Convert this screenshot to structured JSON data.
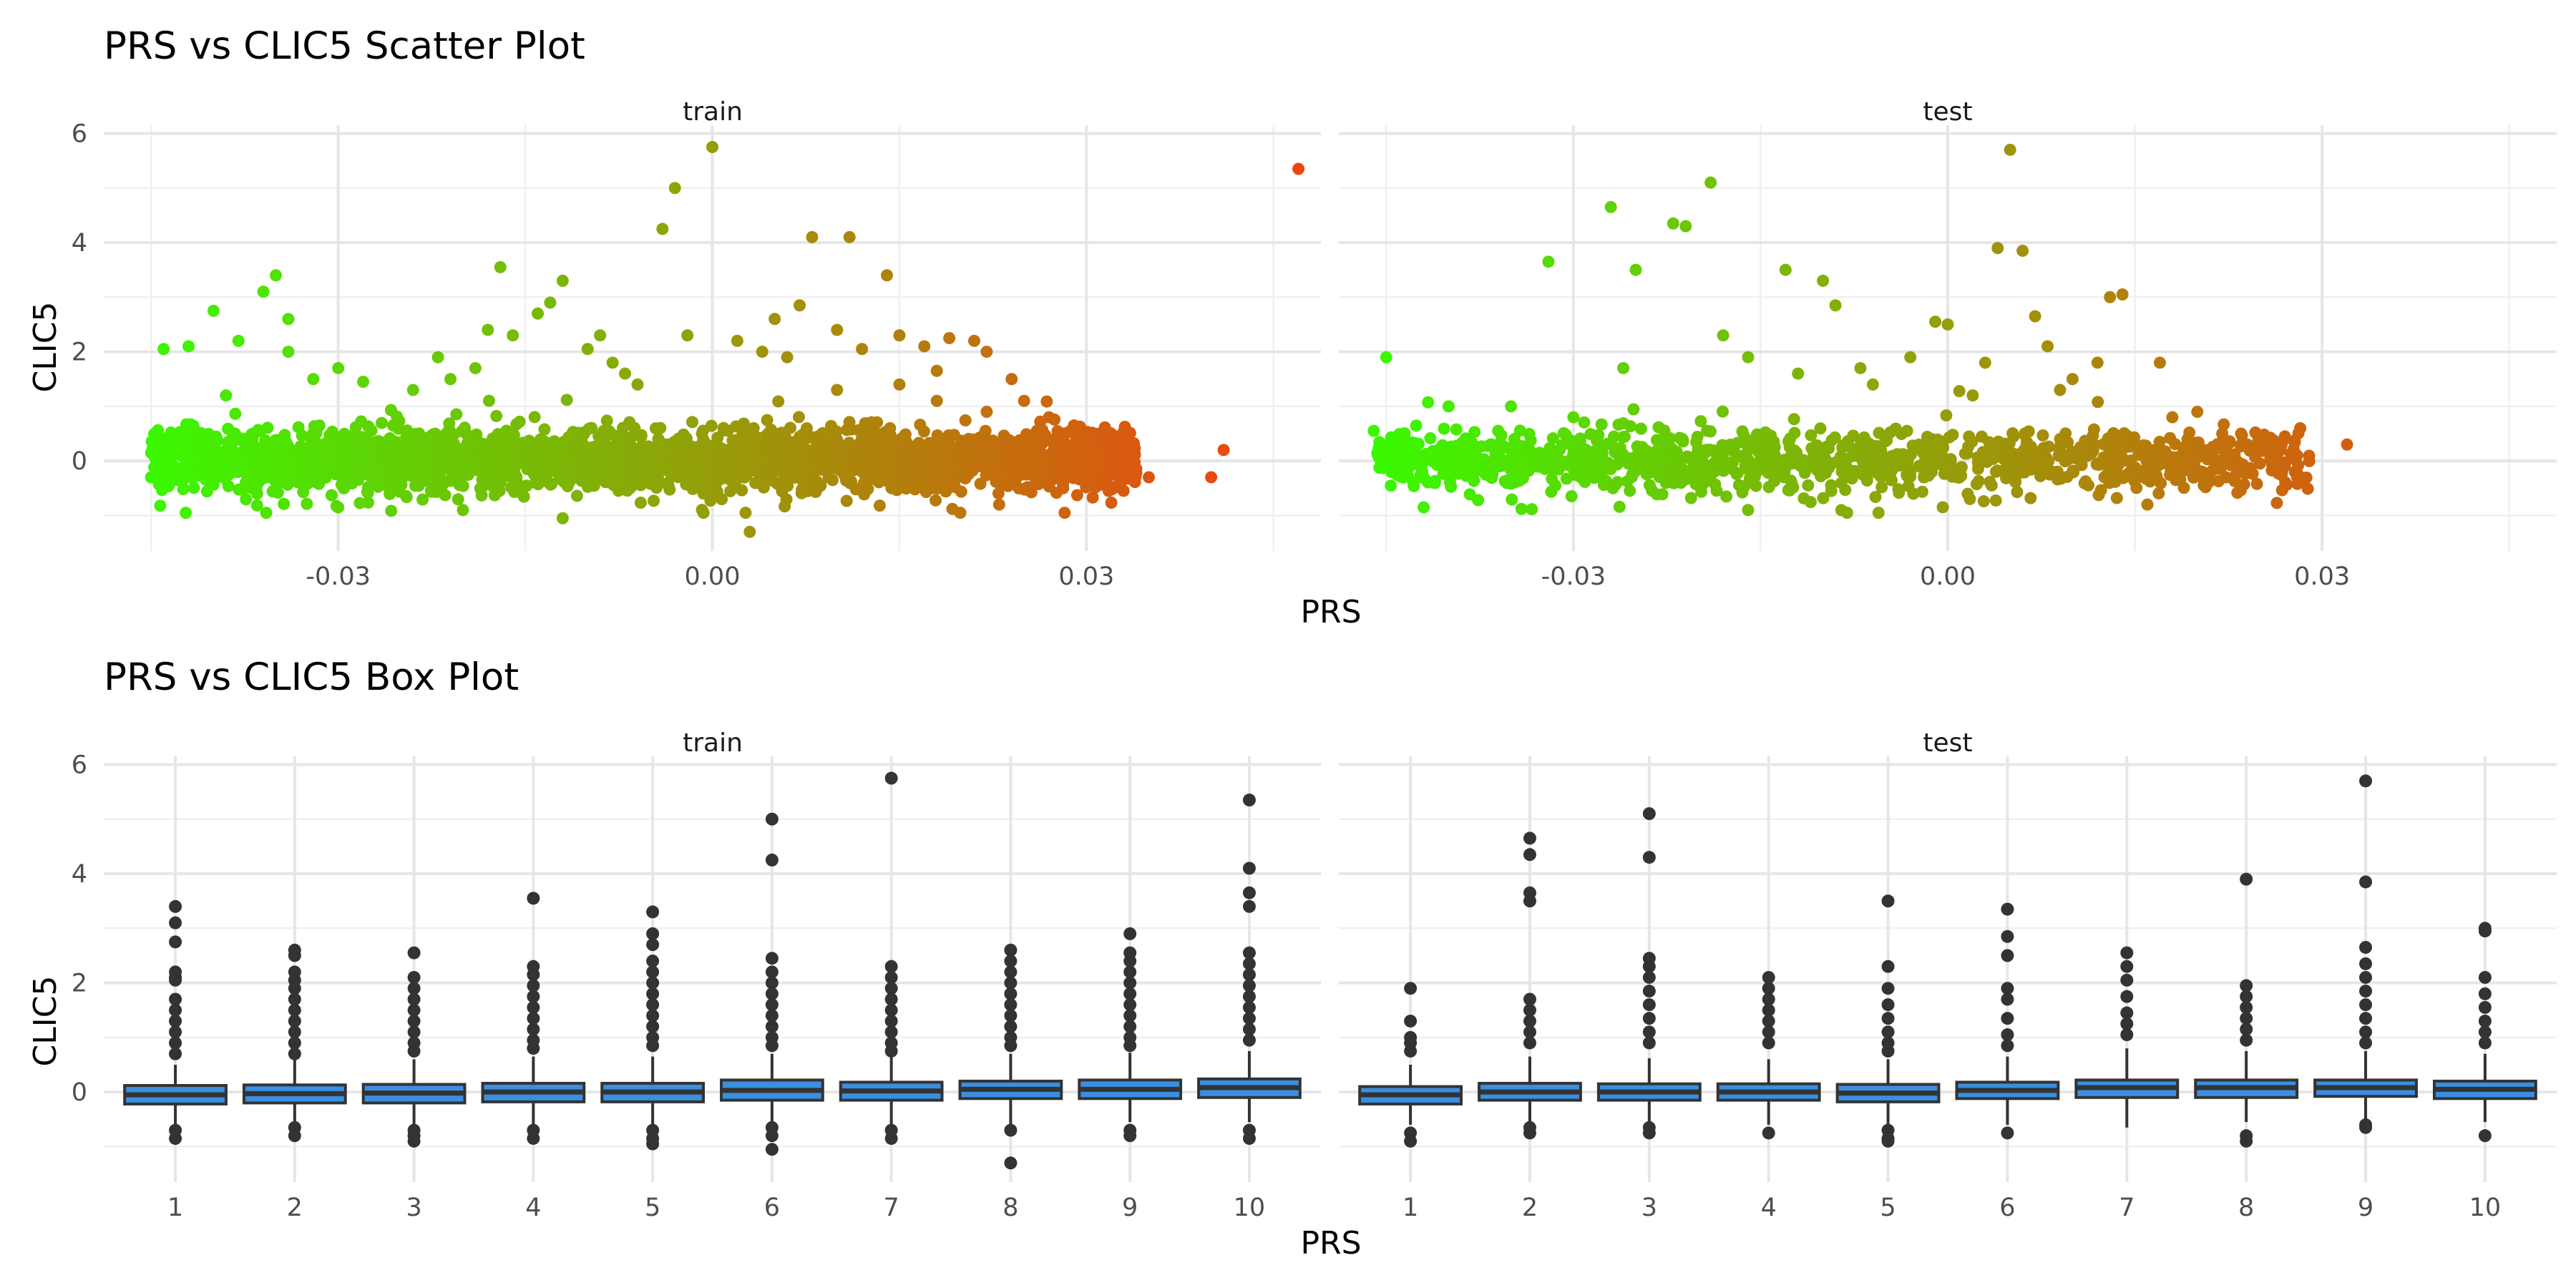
{
  "chart_data": [
    {
      "type": "scatter",
      "title": "PRS vs CLIC5 Scatter Plot",
      "xlabel": "PRS",
      "ylabel": "CLIC5",
      "xlim": [
        -0.0488,
        0.0488
      ],
      "ylim": [
        -1.65,
        6.15
      ],
      "x_ticks": [
        -0.03,
        0.0,
        0.03
      ],
      "x_tick_labels": [
        "-0.03",
        "0.00",
        "0.03"
      ],
      "y_ticks": [
        0,
        2,
        4,
        6
      ],
      "grid": true,
      "color_scale": {
        "low": "#33ff00",
        "high": "#ee4411",
        "by": "PRS"
      },
      "facets": [
        {
          "label": "train",
          "points": [
            [
              -0.035,
              3.4
            ],
            [
              -0.036,
              3.1
            ],
            [
              -0.04,
              2.75
            ],
            [
              -0.038,
              2.2
            ],
            [
              -0.042,
              2.1
            ],
            [
              -0.044,
              2.05
            ],
            [
              -0.034,
              2.6
            ],
            [
              -0.034,
              2.0
            ],
            [
              -0.03,
              1.7
            ],
            [
              -0.022,
              1.9
            ],
            [
              -0.021,
              1.5
            ],
            [
              -0.018,
              2.4
            ],
            [
              -0.017,
              3.55
            ],
            [
              -0.016,
              2.3
            ],
            [
              -0.014,
              2.7
            ],
            [
              -0.012,
              3.3
            ],
            [
              -0.013,
              2.9
            ],
            [
              -0.01,
              2.05
            ],
            [
              -0.008,
              1.8
            ],
            [
              -0.007,
              1.6
            ],
            [
              -0.004,
              4.25
            ],
            [
              -0.003,
              5.0
            ],
            [
              -0.002,
              2.3
            ],
            [
              0.0,
              5.75
            ],
            [
              0.002,
              2.2
            ],
            [
              0.005,
              2.6
            ],
            [
              0.007,
              2.85
            ],
            [
              0.008,
              4.1
            ],
            [
              0.011,
              4.1
            ],
            [
              0.01,
              2.4
            ],
            [
              0.012,
              2.05
            ],
            [
              0.014,
              3.4
            ],
            [
              0.015,
              2.3
            ],
            [
              0.017,
              2.1
            ],
            [
              0.019,
              2.25
            ],
            [
              0.021,
              2.2
            ],
            [
              0.022,
              2.0
            ],
            [
              0.024,
              1.5
            ],
            [
              0.018,
              1.65
            ],
            [
              0.025,
              1.1
            ],
            [
              0.027,
              0.8
            ],
            [
              0.029,
              0.65
            ],
            [
              0.031,
              0.5
            ],
            [
              0.032,
              0.2
            ],
            [
              0.033,
              0.05
            ],
            [
              0.035,
              -0.3
            ],
            [
              0.04,
              -0.3
            ],
            [
              0.041,
              0.2
            ],
            [
              0.047,
              5.35
            ],
            [
              0.003,
              -1.3
            ],
            [
              -0.012,
              -1.05
            ],
            [
              0.023,
              -0.8
            ],
            [
              -0.045,
              0.15
            ],
            [
              -0.045,
              -0.3
            ],
            [
              -0.03,
              -0.85
            ],
            [
              -0.02,
              -0.9
            ],
            [
              0.03,
              -0.1
            ],
            [
              0.028,
              -0.3
            ],
            [
              0.026,
              0.4
            ],
            [
              0.022,
              0.9
            ],
            [
              0.018,
              1.1
            ],
            [
              0.015,
              1.4
            ],
            [
              0.01,
              1.3
            ],
            [
              0.006,
              1.9
            ],
            [
              0.004,
              2.0
            ],
            [
              -0.006,
              1.4
            ],
            [
              -0.024,
              1.3
            ],
            [
              -0.028,
              1.45
            ],
            [
              -0.039,
              1.2
            ],
            [
              -0.032,
              1.5
            ],
            [
              -0.019,
              1.7
            ],
            [
              -0.009,
              2.3
            ]
          ]
        },
        {
          "label": "test",
          "points": [
            [
              -0.045,
              1.9
            ],
            [
              -0.032,
              3.65
            ],
            [
              -0.027,
              4.65
            ],
            [
              -0.025,
              3.5
            ],
            [
              -0.022,
              4.35
            ],
            [
              -0.021,
              4.3
            ],
            [
              -0.019,
              5.1
            ],
            [
              -0.018,
              2.3
            ],
            [
              -0.016,
              1.9
            ],
            [
              -0.013,
              3.5
            ],
            [
              -0.01,
              3.3
            ],
            [
              -0.009,
              2.85
            ],
            [
              -0.007,
              1.7
            ],
            [
              -0.006,
              1.4
            ],
            [
              -0.003,
              1.9
            ],
            [
              -0.001,
              2.55
            ],
            [
              0.0,
              2.5
            ],
            [
              0.003,
              1.8
            ],
            [
              0.004,
              3.9
            ],
            [
              0.005,
              5.7
            ],
            [
              0.006,
              3.85
            ],
            [
              0.007,
              2.65
            ],
            [
              0.008,
              2.1
            ],
            [
              0.01,
              1.5
            ],
            [
              0.012,
              1.8
            ],
            [
              0.013,
              3.0
            ],
            [
              0.014,
              3.05
            ],
            [
              0.017,
              1.8
            ],
            [
              0.018,
              0.8
            ],
            [
              0.02,
              0.9
            ],
            [
              0.022,
              0.5
            ],
            [
              0.024,
              0.3
            ],
            [
              0.026,
              0.2
            ],
            [
              0.028,
              0.1
            ],
            [
              0.028,
              -0.3
            ],
            [
              0.032,
              0.3
            ],
            [
              0.016,
              -0.8
            ],
            [
              -0.042,
              -0.85
            ],
            [
              -0.045,
              0.15
            ],
            [
              -0.046,
              0.55
            ],
            [
              -0.04,
              1.0
            ],
            [
              -0.035,
              1.0
            ],
            [
              -0.03,
              0.8
            ],
            [
              -0.026,
              1.7
            ],
            [
              -0.016,
              -0.9
            ],
            [
              0.002,
              1.2
            ],
            [
              0.009,
              1.3
            ],
            [
              -0.012,
              1.6
            ]
          ]
        }
      ]
    },
    {
      "type": "box",
      "title": "PRS vs CLIC5 Box Plot",
      "xlabel": "PRS",
      "ylabel": "CLIC5",
      "categories": [
        "1",
        "2",
        "3",
        "4",
        "5",
        "6",
        "7",
        "8",
        "9",
        "10"
      ],
      "ylim": [
        -1.65,
        6.15
      ],
      "y_ticks": [
        0,
        2,
        4,
        6
      ],
      "grid": true,
      "box_color": "#3a8fe0",
      "line_color": "#333333",
      "facets": [
        {
          "label": "train",
          "boxes": [
            {
              "q1": -0.22,
              "median": -0.05,
              "q3": 0.12,
              "lo": -0.6,
              "hi": 0.5,
              "outliers": [
                3.4,
                3.1,
                2.75,
                2.2,
                2.1,
                2.05,
                1.7,
                1.5,
                1.3,
                1.1,
                0.9,
                0.7,
                -0.7,
                -0.85
              ]
            },
            {
              "q1": -0.2,
              "median": -0.03,
              "q3": 0.13,
              "lo": -0.6,
              "hi": 0.6,
              "outliers": [
                2.6,
                2.5,
                2.2,
                2.05,
                1.9,
                1.7,
                1.5,
                1.3,
                1.1,
                0.9,
                0.7,
                -0.65,
                -0.8
              ]
            },
            {
              "q1": -0.2,
              "median": -0.02,
              "q3": 0.14,
              "lo": -0.6,
              "hi": 0.6,
              "outliers": [
                2.55,
                2.1,
                1.9,
                1.7,
                1.5,
                1.3,
                1.1,
                0.9,
                0.75,
                -0.7,
                -0.8,
                -0.9
              ]
            },
            {
              "q1": -0.18,
              "median": 0.0,
              "q3": 0.16,
              "lo": -0.6,
              "hi": 0.65,
              "outliers": [
                3.55,
                2.3,
                2.15,
                1.95,
                1.75,
                1.55,
                1.35,
                1.15,
                0.95,
                0.8,
                -0.7,
                -0.85
              ]
            },
            {
              "q1": -0.18,
              "median": 0.0,
              "q3": 0.16,
              "lo": -0.6,
              "hi": 0.65,
              "outliers": [
                3.3,
                2.9,
                2.7,
                2.4,
                2.2,
                2.0,
                1.8,
                1.6,
                1.4,
                1.2,
                1.0,
                0.85,
                -0.7,
                -0.85,
                -0.95
              ]
            },
            {
              "q1": -0.15,
              "median": 0.03,
              "q3": 0.22,
              "lo": -0.6,
              "hi": 0.7,
              "outliers": [
                5.0,
                4.25,
                2.45,
                2.2,
                2.0,
                1.8,
                1.6,
                1.4,
                1.2,
                1.0,
                0.85,
                -0.65,
                -0.8,
                -1.05
              ]
            },
            {
              "q1": -0.15,
              "median": 0.02,
              "q3": 0.18,
              "lo": -0.6,
              "hi": 0.68,
              "outliers": [
                5.75,
                2.3,
                2.1,
                1.9,
                1.7,
                1.5,
                1.3,
                1.1,
                0.9,
                0.75,
                -0.7,
                -0.85
              ]
            },
            {
              "q1": -0.12,
              "median": 0.05,
              "q3": 0.2,
              "lo": -0.6,
              "hi": 0.7,
              "outliers": [
                2.6,
                2.4,
                2.2,
                2.0,
                1.8,
                1.6,
                1.4,
                1.2,
                1.0,
                0.85,
                -0.7,
                -1.3
              ]
            },
            {
              "q1": -0.12,
              "median": 0.05,
              "q3": 0.22,
              "lo": -0.55,
              "hi": 0.72,
              "outliers": [
                2.9,
                2.55,
                2.4,
                2.2,
                2.0,
                1.8,
                1.6,
                1.4,
                1.2,
                1.0,
                0.85,
                -0.7,
                -0.8
              ]
            },
            {
              "q1": -0.1,
              "median": 0.08,
              "q3": 0.24,
              "lo": -0.55,
              "hi": 0.75,
              "outliers": [
                5.35,
                4.1,
                3.65,
                3.4,
                2.55,
                2.35,
                2.15,
                1.95,
                1.75,
                1.55,
                1.35,
                1.15,
                0.95,
                -0.7,
                -0.85
              ]
            }
          ]
        },
        {
          "label": "test",
          "boxes": [
            {
              "q1": -0.22,
              "median": -0.05,
              "q3": 0.1,
              "lo": -0.6,
              "hi": 0.5,
              "outliers": [
                1.9,
                1.3,
                1.0,
                0.9,
                0.75,
                -0.75,
                -0.9
              ]
            },
            {
              "q1": -0.15,
              "median": 0.0,
              "q3": 0.16,
              "lo": -0.6,
              "hi": 0.65,
              "outliers": [
                4.65,
                4.35,
                3.65,
                3.5,
                1.7,
                1.5,
                1.3,
                1.1,
                0.9,
                -0.65,
                -0.75
              ]
            },
            {
              "q1": -0.15,
              "median": 0.0,
              "q3": 0.15,
              "lo": -0.6,
              "hi": 0.62,
              "outliers": [
                5.1,
                4.3,
                2.45,
                2.3,
                2.1,
                1.85,
                1.6,
                1.35,
                1.1,
                0.9,
                -0.65,
                -0.75
              ]
            },
            {
              "q1": -0.15,
              "median": 0.0,
              "q3": 0.15,
              "lo": -0.6,
              "hi": 0.6,
              "outliers": [
                2.1,
                1.9,
                1.7,
                1.5,
                1.3,
                1.1,
                0.9,
                -0.75
              ]
            },
            {
              "q1": -0.18,
              "median": -0.02,
              "q3": 0.14,
              "lo": -0.6,
              "hi": 0.6,
              "outliers": [
                3.5,
                2.3,
                1.9,
                1.6,
                1.35,
                1.1,
                0.9,
                0.75,
                -0.7,
                -0.85,
                -0.9
              ]
            },
            {
              "q1": -0.12,
              "median": 0.03,
              "q3": 0.18,
              "lo": -0.6,
              "hi": 0.65,
              "outliers": [
                3.35,
                2.85,
                2.5,
                1.9,
                1.7,
                1.35,
                1.05,
                0.85,
                -0.75
              ]
            },
            {
              "q1": -0.1,
              "median": 0.08,
              "q3": 0.22,
              "lo": -0.65,
              "hi": 0.8,
              "outliers": [
                2.55,
                2.3,
                2.05,
                1.75,
                1.45,
                1.25,
                1.05
              ]
            },
            {
              "q1": -0.1,
              "median": 0.08,
              "q3": 0.22,
              "lo": -0.55,
              "hi": 0.75,
              "outliers": [
                3.9,
                1.95,
                1.75,
                1.55,
                1.35,
                1.15,
                0.95,
                -0.8,
                -0.9
              ]
            },
            {
              "q1": -0.08,
              "median": 0.08,
              "q3": 0.22,
              "lo": -0.55,
              "hi": 0.75,
              "outliers": [
                5.7,
                3.85,
                2.65,
                2.35,
                2.1,
                1.85,
                1.6,
                1.35,
                1.1,
                0.9,
                -0.6,
                -0.65
              ]
            },
            {
              "q1": -0.12,
              "median": 0.05,
              "q3": 0.2,
              "lo": -0.55,
              "hi": 0.7,
              "outliers": [
                3.0,
                2.95,
                2.1,
                1.8,
                1.55,
                1.3,
                1.1,
                0.9,
                -0.8
              ]
            }
          ]
        }
      ]
    }
  ]
}
